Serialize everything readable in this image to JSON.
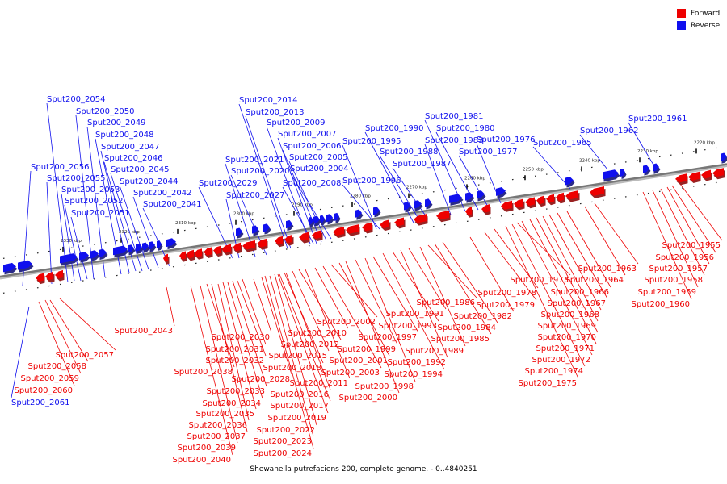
{
  "legend": {
    "forward": {
      "label": "Forward",
      "color": "#ee0000"
    },
    "reverse": {
      "label": "Reverse",
      "color": "#1010ee"
    }
  },
  "caption": "Shewanella putrefaciens 200, complete genome. - 0..4840251",
  "scale_ticks": [
    "2220 kbp",
    "2230 kbp",
    "2240 kbp",
    "2250 kbp",
    "2260 kbp",
    "2270 kbp",
    "2280 kbp",
    "2290 kbp",
    "2300 kbp",
    "2310 kbp",
    "2320 kbp",
    "2330 kbp"
  ],
  "forward_genes": [
    "Sput200_1955",
    "Sput200_1956",
    "Sput200_1957",
    "Sput200_1958",
    "Sput200_1959",
    "Sput200_1960",
    "Sput200_1963",
    "Sput200_1964",
    "Sput200_1966",
    "Sput200_1967",
    "Sput200_1968",
    "Sput200_1969",
    "Sput200_1970",
    "Sput200_1971",
    "Sput200_1972",
    "Sput200_1973",
    "Sput200_1974",
    "Sput200_1975",
    "Sput200_1978",
    "Sput200_1979",
    "Sput200_1982",
    "Sput200_1984",
    "Sput200_1985",
    "Sput200_1986",
    "Sput200_1989",
    "Sput200_1991",
    "Sput200_1992",
    "Sput200_1993",
    "Sput200_1994",
    "Sput200_1997",
    "Sput200_1998",
    "Sput200_1999",
    "Sput200_2000",
    "Sput200_2001",
    "Sput200_2002",
    "Sput200_2003",
    "Sput200_2010",
    "Sput200_2011",
    "Sput200_2012",
    "Sput200_2015",
    "Sput200_2016",
    "Sput200_2017",
    "Sput200_2018",
    "Sput200_2019",
    "Sput200_2022",
    "Sput200_2023",
    "Sput200_2024",
    "Sput200_2028",
    "Sput200_2030",
    "Sput200_2031",
    "Sput200_2032",
    "Sput200_2033",
    "Sput200_2034",
    "Sput200_2035",
    "Sput200_2036",
    "Sput200_2037",
    "Sput200_2038",
    "Sput200_2039",
    "Sput200_2040",
    "Sput200_2043",
    "Sput200_2057",
    "Sput200_2058",
    "Sput200_2059",
    "Sput200_2060"
  ],
  "reverse_genes": [
    "Sput200_1961",
    "Sput200_1962",
    "Sput200_1965",
    "Sput200_1976",
    "Sput200_1977",
    "Sput200_1980",
    "Sput200_1981",
    "Sput200_1983",
    "Sput200_1987",
    "Sput200_1988",
    "Sput200_1990",
    "Sput200_1995",
    "Sput200_1996",
    "Sput200_2004",
    "Sput200_2005",
    "Sput200_2006",
    "Sput200_2007",
    "Sput200_2008",
    "Sput200_2009",
    "Sput200_2013",
    "Sput200_2014",
    "Sput200_2020",
    "Sput200_2021",
    "Sput200_2027",
    "Sput200_2029",
    "Sput200_2041",
    "Sput200_2042",
    "Sput200_2044",
    "Sput200_2045",
    "Sput200_2046",
    "Sput200_2047",
    "Sput200_2048",
    "Sput200_2049",
    "Sput200_2050",
    "Sput200_2051",
    "Sput200_2052",
    "Sput200_2053",
    "Sput200_2054",
    "Sput200_2055",
    "Sput200_2056",
    "Sput200_2061"
  ]
}
